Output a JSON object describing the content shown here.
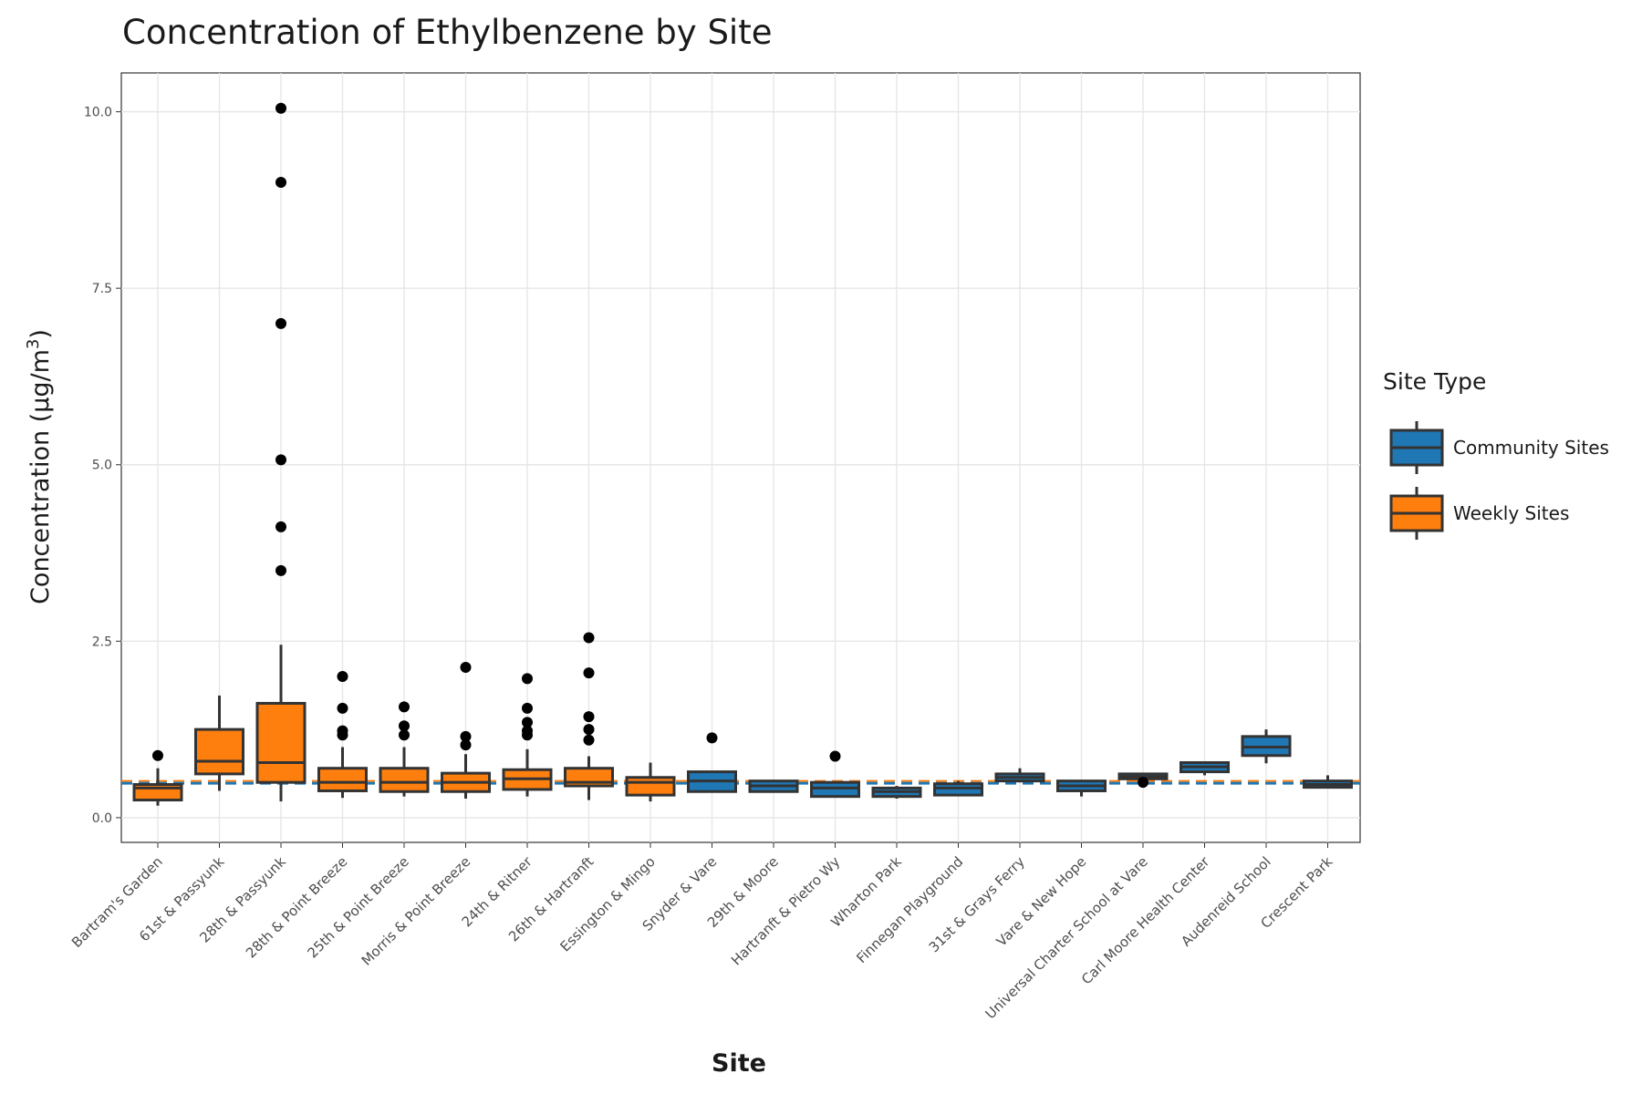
{
  "chart_data": {
    "type": "box",
    "title": "Concentration of Ethylbenzene by Site",
    "xlabel": "Site",
    "ylabel": "Concentration (μg/m",
    "ylabel_superscript": "3",
    "ylabel_suffix": ")",
    "ylim": [
      -0.35,
      10.55
    ],
    "yticks": [
      "0.0",
      "2.5",
      "5.0",
      "7.5",
      "10.0"
    ],
    "ytick_values": [
      0,
      2.5,
      5,
      7.5,
      10
    ],
    "reference_line": 0.5,
    "grid": true,
    "legend": {
      "title": "Site Type",
      "position": "right",
      "items": [
        {
          "label": "Community Sites",
          "color": "#1f77b4"
        },
        {
          "label": "Weekly Sites",
          "color": "#ff7f0e"
        }
      ]
    },
    "colors": {
      "community": "#1f77b4",
      "weekly": "#ff7f0e",
      "outline": "#333333",
      "reference_weekly": "#ff7f0e",
      "reference_community": "#1f77b4"
    },
    "categories": [
      "Bartram's Garden",
      "61st & Passyunk",
      "28th & Passyunk",
      "28th & Point Breeze",
      "25th & Point Breeze",
      "Morris & Point Breeze",
      "24th & Ritner",
      "26th & Hartranft",
      "Essington & Mingo",
      "Snyder & Vare",
      "29th & Moore",
      "Hartranft & Pietro Wy",
      "Wharton Park",
      "Finnegan Playground",
      "31st & Grays Ferry",
      "Vare & New Hope",
      "Universal Charter School at Vare",
      "Carl Moore Health Center",
      "Audenreid School",
      "Crescent Park"
    ],
    "series": [
      {
        "name": "Weekly Sites",
        "boxes": [
          {
            "site": "Bartram's Garden",
            "min": 0.17,
            "q1": 0.25,
            "median": 0.42,
            "q3": 0.47,
            "max": 0.7,
            "outliers": [
              0.88
            ]
          },
          {
            "site": "61st & Passyunk",
            "min": 0.38,
            "q1": 0.62,
            "median": 0.8,
            "q3": 1.25,
            "max": 1.73,
            "outliers": []
          },
          {
            "site": "28th & Passyunk",
            "min": 0.23,
            "q1": 0.5,
            "median": 0.78,
            "q3": 1.62,
            "max": 2.45,
            "outliers": [
              3.5,
              4.12,
              5.07,
              7.0,
              9.0,
              10.05
            ]
          },
          {
            "site": "28th & Point Breeze",
            "min": 0.28,
            "q1": 0.38,
            "median": 0.5,
            "q3": 0.7,
            "max": 1.0,
            "outliers": [
              1.17,
              1.23,
              1.55,
              2.0
            ]
          },
          {
            "site": "25th & Point Breeze",
            "min": 0.3,
            "q1": 0.37,
            "median": 0.5,
            "q3": 0.7,
            "max": 1.0,
            "outliers": [
              1.17,
              1.3,
              1.57
            ]
          },
          {
            "site": "Morris & Point Breeze",
            "min": 0.27,
            "q1": 0.37,
            "median": 0.5,
            "q3": 0.63,
            "max": 0.9,
            "outliers": [
              1.03,
              1.15,
              2.13
            ]
          },
          {
            "site": "24th & Ritner",
            "min": 0.3,
            "q1": 0.4,
            "median": 0.55,
            "q3": 0.68,
            "max": 0.97,
            "outliers": [
              1.17,
              1.23,
              1.35,
              1.55,
              1.97
            ]
          },
          {
            "site": "26th & Hartranft",
            "min": 0.25,
            "q1": 0.45,
            "median": 0.5,
            "q3": 0.7,
            "max": 0.87,
            "outliers": [
              1.1,
              1.25,
              1.43,
              2.05,
              2.55
            ]
          },
          {
            "site": "Essington & Mingo",
            "min": 0.23,
            "q1": 0.32,
            "median": 0.5,
            "q3": 0.57,
            "max": 0.78,
            "outliers": []
          }
        ]
      },
      {
        "name": "Community Sites",
        "boxes": [
          {
            "site": "Snyder & Vare",
            "min": 0.37,
            "q1": 0.37,
            "median": 0.52,
            "q3": 0.65,
            "max": 0.65,
            "outliers": [
              1.13
            ]
          },
          {
            "site": "29th & Moore",
            "min": 0.37,
            "q1": 0.37,
            "median": 0.45,
            "q3": 0.52,
            "max": 0.52,
            "outliers": []
          },
          {
            "site": "Hartranft & Pietro Wy",
            "min": 0.3,
            "q1": 0.3,
            "median": 0.42,
            "q3": 0.5,
            "max": 0.5,
            "outliers": [
              0.87
            ]
          },
          {
            "site": "Wharton Park",
            "min": 0.27,
            "q1": 0.3,
            "median": 0.37,
            "q3": 0.42,
            "max": 0.45,
            "outliers": []
          },
          {
            "site": "Finnegan Playground",
            "min": 0.32,
            "q1": 0.32,
            "median": 0.42,
            "q3": 0.48,
            "max": 0.52,
            "outliers": []
          },
          {
            "site": "31st & Grays Ferry",
            "min": 0.5,
            "q1": 0.52,
            "median": 0.57,
            "q3": 0.62,
            "max": 0.7,
            "outliers": []
          },
          {
            "site": "Vare & New Hope",
            "min": 0.3,
            "q1": 0.38,
            "median": 0.45,
            "q3": 0.52,
            "max": 0.52,
            "outliers": []
          },
          {
            "site": "Universal Charter School at Vare",
            "min": 0.55,
            "q1": 0.55,
            "median": 0.58,
            "q3": 0.62,
            "max": 0.62,
            "outliers": [
              0.5
            ]
          },
          {
            "site": "Carl Moore Health Center",
            "min": 0.6,
            "q1": 0.65,
            "median": 0.72,
            "q3": 0.78,
            "max": 0.78,
            "outliers": []
          },
          {
            "site": "Audenreid School",
            "min": 0.77,
            "q1": 0.88,
            "median": 1.0,
            "q3": 1.15,
            "max": 1.25,
            "outliers": []
          },
          {
            "site": "Crescent Park",
            "min": 0.43,
            "q1": 0.43,
            "median": 0.47,
            "q3": 0.52,
            "max": 0.6,
            "outliers": []
          }
        ]
      }
    ]
  }
}
